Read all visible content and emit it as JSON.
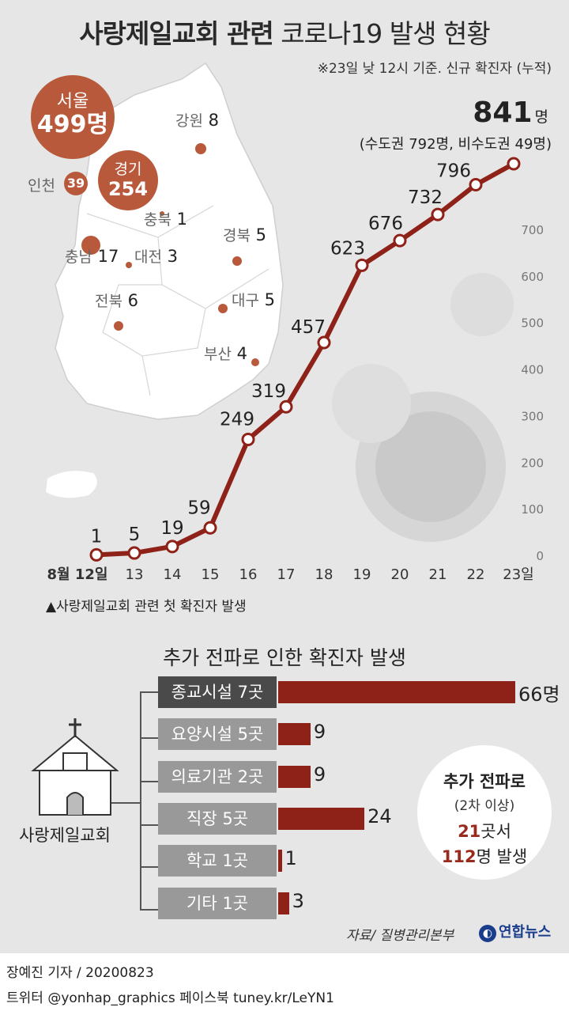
{
  "title": {
    "bold": "사랑제일교회 관련",
    "light": "코로나19 발생 현황"
  },
  "note": "※23일 낮 12시 기준. 신규 확진자 (누적)",
  "total": {
    "value": "841",
    "unit": "명",
    "detail": "(수도권 792명, 비수도권 49명)"
  },
  "map_regions": [
    {
      "name": "서울",
      "value": "499명",
      "color": "#b9593b"
    },
    {
      "name": "경기",
      "value": "254",
      "color": "#b9593b"
    },
    {
      "name": "인천",
      "value": "39",
      "color": "#b9593b"
    },
    {
      "name": "강원",
      "value": "8",
      "color": "#b9593b"
    },
    {
      "name": "충북",
      "value": "1",
      "color": "#b9593b"
    },
    {
      "name": "충남",
      "value": "17",
      "color": "#b9593b"
    },
    {
      "name": "대전",
      "value": "3",
      "color": "#b9593b"
    },
    {
      "name": "경북",
      "value": "5",
      "color": "#b9593b"
    },
    {
      "name": "전북",
      "value": "6",
      "color": "#b9593b"
    },
    {
      "name": "대구",
      "value": "5",
      "color": "#b9593b"
    },
    {
      "name": "부산",
      "value": "4",
      "color": "#b9593b"
    }
  ],
  "chart_data": [
    {
      "type": "line",
      "x": [
        "8월 12일",
        "13",
        "14",
        "15",
        "16",
        "17",
        "18",
        "19",
        "20",
        "21",
        "22",
        "23일"
      ],
      "series": [
        {
          "values": [
            1,
            5,
            19,
            59,
            249,
            319,
            457,
            623,
            676,
            732,
            796,
            841
          ]
        }
      ],
      "yticks": [
        0,
        100,
        200,
        300,
        400,
        500,
        600,
        700
      ],
      "ylim": [
        0,
        870
      ],
      "color": "#8f2218",
      "grid": false
    },
    {
      "type": "bar",
      "title": "추가 전파로 인한 확진자 발생",
      "categories": [
        "종교시설 7곳",
        "요양시설 5곳",
        "의료기관 2곳",
        "직장 5곳",
        "학교 1곳",
        "기타 1곳"
      ],
      "values": [
        66,
        9,
        9,
        24,
        1,
        3
      ],
      "value_labels": [
        "66명",
        "9",
        "9",
        "24",
        "1",
        "3"
      ],
      "color": "#8f2218"
    }
  ],
  "axis_note": "▲사랑제일교회 관련 첫 확진자 발생",
  "church_label": "사랑제일교회",
  "spread_circle": {
    "line1": "추가 전파로",
    "line2": "(2차 이상)",
    "num1": "21",
    "text1": "곳서",
    "num2": "112",
    "text2": "명 발생"
  },
  "source": "자료/ 질병관리본부",
  "logo": "연합뉴스",
  "byline": "장예진 기자 / 20200823",
  "social": "트위터 @yonhap_graphics  페이스북 tuney.kr/LeYN1"
}
